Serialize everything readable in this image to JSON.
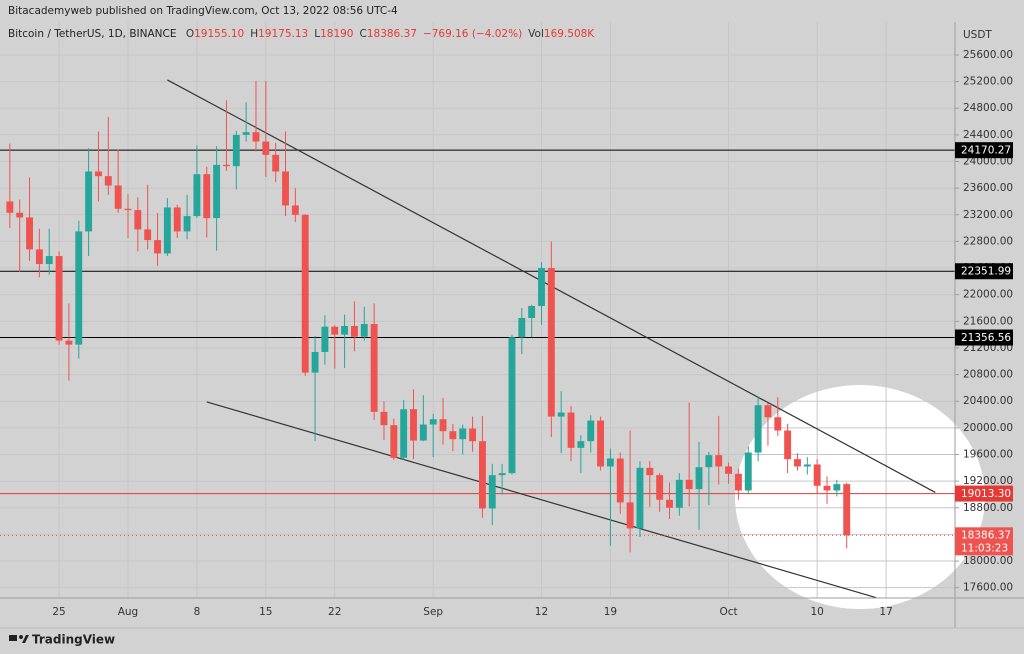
{
  "header": {
    "publisher": "Bitacademyweb published on TradingView.com, Oct 13, 2022 08:56 UTC-4",
    "footer": "TradingView"
  },
  "chart_data": {
    "type": "candlestick",
    "symbol": "Bitcoin / TetherUS, 1D, BINANCE",
    "legend_items": [
      {
        "key": "O",
        "value": "19155.10"
      },
      {
        "key": "H",
        "value": "19175.13"
      },
      {
        "key": "L",
        "value": "18190"
      },
      {
        "key": "C",
        "value": "18386.37"
      },
      {
        "key": "",
        "value": "−769.16 (−4.02%)"
      },
      {
        "key": "Vol",
        "value": "169.508K"
      }
    ],
    "y_axis_label": "USDT",
    "up_color": "#26a69a",
    "down_color": "#ef5350",
    "grid": true,
    "xlim": [
      "2022-07-19",
      "2022-10-24"
    ],
    "ylim": [
      17445,
      26095
    ],
    "yticks": [
      {
        "value": 17600,
        "label": "17600.00"
      },
      {
        "value": 18000,
        "label": "18000.00"
      },
      {
        "value": 18400,
        "label": "18400.00"
      },
      {
        "value": 18800,
        "label": "18800.00"
      },
      {
        "value": 19200,
        "label": "19200.00"
      },
      {
        "value": 19600,
        "label": "19600.00"
      },
      {
        "value": 20000,
        "label": "20000.00"
      },
      {
        "value": 20400,
        "label": "20400.00"
      },
      {
        "value": 20800,
        "label": "20800.00"
      },
      {
        "value": 21200,
        "label": "21200.00"
      },
      {
        "value": 21600,
        "label": "21600.00"
      },
      {
        "value": 22000,
        "label": "22000.00"
      },
      {
        "value": 22400,
        "label": "22400.00"
      },
      {
        "value": 22800,
        "label": "22800.00"
      },
      {
        "value": 23200,
        "label": "23200.00"
      },
      {
        "value": 23600,
        "label": "23600.00"
      },
      {
        "value": 24000,
        "label": "24000.00"
      },
      {
        "value": 24400,
        "label": "24400.00"
      },
      {
        "value": 24800,
        "label": "24800.00"
      },
      {
        "value": 25200,
        "label": "25200.00"
      },
      {
        "value": 25600,
        "label": "25600.00"
      }
    ],
    "xticks": [
      {
        "value": "2022-07-25",
        "label": "25"
      },
      {
        "value": "2022-08-01",
        "label": "Aug"
      },
      {
        "value": "2022-08-08",
        "label": "8"
      },
      {
        "value": "2022-08-15",
        "label": "15"
      },
      {
        "value": "2022-08-22",
        "label": "22"
      },
      {
        "value": "2022-09-01",
        "label": "Sep"
      },
      {
        "value": "2022-09-12",
        "label": "12"
      },
      {
        "value": "2022-09-19",
        "label": "19"
      },
      {
        "value": "2022-10-01",
        "label": "Oct"
      },
      {
        "value": "2022-10-10",
        "label": "10"
      },
      {
        "value": "2022-10-17",
        "label": "17"
      }
    ],
    "x": [
      "2022-07-20",
      "2022-07-21",
      "2022-07-22",
      "2022-07-23",
      "2022-07-24",
      "2022-07-25",
      "2022-07-26",
      "2022-07-27",
      "2022-07-28",
      "2022-07-29",
      "2022-07-30",
      "2022-07-31",
      "2022-08-01",
      "2022-08-02",
      "2022-08-03",
      "2022-08-04",
      "2022-08-05",
      "2022-08-06",
      "2022-08-07",
      "2022-08-08",
      "2022-08-09",
      "2022-08-10",
      "2022-08-11",
      "2022-08-12",
      "2022-08-13",
      "2022-08-14",
      "2022-08-15",
      "2022-08-16",
      "2022-08-17",
      "2022-08-18",
      "2022-08-19",
      "2022-08-20",
      "2022-08-21",
      "2022-08-22",
      "2022-08-23",
      "2022-08-24",
      "2022-08-25",
      "2022-08-26",
      "2022-08-27",
      "2022-08-28",
      "2022-08-29",
      "2022-08-30",
      "2022-08-31",
      "2022-09-01",
      "2022-09-02",
      "2022-09-03",
      "2022-09-04",
      "2022-09-05",
      "2022-09-06",
      "2022-09-07",
      "2022-09-08",
      "2022-09-09",
      "2022-09-10",
      "2022-09-11",
      "2022-09-12",
      "2022-09-13",
      "2022-09-14",
      "2022-09-15",
      "2022-09-16",
      "2022-09-17",
      "2022-09-18",
      "2022-09-19",
      "2022-09-20",
      "2022-09-21",
      "2022-09-22",
      "2022-09-23",
      "2022-09-24",
      "2022-09-25",
      "2022-09-26",
      "2022-09-27",
      "2022-09-28",
      "2022-09-29",
      "2022-09-30",
      "2022-10-01",
      "2022-10-02",
      "2022-10-03",
      "2022-10-04",
      "2022-10-05",
      "2022-10-06",
      "2022-10-07",
      "2022-10-08",
      "2022-10-09",
      "2022-10-10",
      "2022-10-11",
      "2022-10-12",
      "2022-10-13"
    ],
    "ohlc": [
      [
        23400,
        24270,
        23000,
        23230
      ],
      [
        23230,
        23430,
        22340,
        23160
      ],
      [
        23160,
        23760,
        22510,
        22680
      ],
      [
        22680,
        22990,
        22260,
        22460
      ],
      [
        22460,
        22990,
        22300,
        22580
      ],
      [
        22580,
        22650,
        21250,
        21310
      ],
      [
        21310,
        21870,
        20710,
        21250
      ],
      [
        21250,
        23110,
        21040,
        22950
      ],
      [
        22950,
        24200,
        22580,
        23850
      ],
      [
        23850,
        24450,
        23400,
        23780
      ],
      [
        23780,
        24670,
        23500,
        23640
      ],
      [
        23640,
        24180,
        23230,
        23290
      ],
      [
        23290,
        23510,
        22850,
        23270
      ],
      [
        23270,
        23460,
        22650,
        22980
      ],
      [
        22980,
        23650,
        22680,
        22820
      ],
      [
        22820,
        23230,
        22430,
        22620
      ],
      [
        22620,
        23450,
        22580,
        23310
      ],
      [
        23310,
        23350,
        22850,
        22950
      ],
      [
        22950,
        23500,
        22830,
        23180
      ],
      [
        23180,
        24240,
        23150,
        23810
      ],
      [
        23810,
        23920,
        22860,
        23150
      ],
      [
        23150,
        24230,
        22660,
        23950
      ],
      [
        23950,
        24920,
        23860,
        23930
      ],
      [
        23930,
        24460,
        23580,
        24400
      ],
      [
        24400,
        24890,
        24300,
        24440
      ],
      [
        24440,
        25210,
        24150,
        24300
      ],
      [
        24300,
        25210,
        23770,
        24100
      ],
      [
        24100,
        24280,
        23690,
        23850
      ],
      [
        23850,
        24450,
        23180,
        23340
      ],
      [
        23340,
        23600,
        23090,
        23200
      ],
      [
        23200,
        23210,
        20780,
        20830
      ],
      [
        20830,
        21380,
        19800,
        21140
      ],
      [
        21140,
        21690,
        20950,
        21520
      ],
      [
        21520,
        21540,
        20890,
        21400
      ],
      [
        21400,
        21700,
        20900,
        21530
      ],
      [
        21530,
        21900,
        21150,
        21370
      ],
      [
        21370,
        21820,
        21310,
        21560
      ],
      [
        21560,
        21870,
        20120,
        20240
      ],
      [
        20240,
        20400,
        19820,
        20040
      ],
      [
        20040,
        20140,
        19520,
        19550
      ],
      [
        19550,
        20420,
        19520,
        20280
      ],
      [
        20280,
        20580,
        19530,
        19810
      ],
      [
        19810,
        20490,
        19800,
        20050
      ],
      [
        20050,
        20210,
        19560,
        20130
      ],
      [
        20130,
        20450,
        19750,
        19950
      ],
      [
        19950,
        20060,
        19650,
        19830
      ],
      [
        19830,
        20050,
        19600,
        19990
      ],
      [
        19990,
        20170,
        19640,
        19800
      ],
      [
        19800,
        20180,
        18650,
        18790
      ],
      [
        18790,
        19460,
        18540,
        19290
      ],
      [
        19290,
        19460,
        19000,
        19320
      ],
      [
        19320,
        21400,
        19300,
        21360
      ],
      [
        21360,
        21800,
        21110,
        21650
      ],
      [
        21650,
        21850,
        21360,
        21830
      ],
      [
        21830,
        22490,
        21550,
        22400
      ],
      [
        22400,
        22800,
        19860,
        20170
      ],
      [
        20170,
        20550,
        19620,
        20230
      ],
      [
        20230,
        20330,
        19500,
        19700
      ],
      [
        19700,
        19890,
        19320,
        19800
      ],
      [
        19800,
        20190,
        19630,
        20110
      ],
      [
        20110,
        20170,
        19360,
        19420
      ],
      [
        19420,
        19690,
        18230,
        19540
      ],
      [
        19540,
        19630,
        18710,
        18880
      ],
      [
        18880,
        19960,
        18130,
        18490
      ],
      [
        18490,
        19500,
        18360,
        19400
      ],
      [
        19400,
        19500,
        18810,
        19290
      ],
      [
        19290,
        19320,
        18740,
        18920
      ],
      [
        18920,
        19180,
        18630,
        18800
      ],
      [
        18800,
        19320,
        18680,
        19220
      ],
      [
        19220,
        20380,
        18820,
        19080
      ],
      [
        19080,
        19790,
        18470,
        19410
      ],
      [
        19410,
        19640,
        18840,
        19590
      ],
      [
        19590,
        20180,
        19150,
        19420
      ],
      [
        19420,
        19480,
        19160,
        19310
      ],
      [
        19310,
        19390,
        18920,
        19060
      ],
      [
        19060,
        19720,
        19000,
        19630
      ],
      [
        19630,
        20480,
        19500,
        20340
      ],
      [
        20340,
        20370,
        19730,
        20160
      ],
      [
        20160,
        20460,
        19880,
        19960
      ],
      [
        19960,
        20060,
        19320,
        19530
      ],
      [
        19530,
        19620,
        19360,
        19420
      ],
      [
        19420,
        19560,
        19300,
        19450
      ],
      [
        19450,
        19530,
        19020,
        19130
      ],
      [
        19130,
        19270,
        18860,
        19060
      ],
      [
        19060,
        19220,
        18970,
        19155.1
      ],
      [
        19155.1,
        19175.13,
        18190,
        18386.37
      ]
    ],
    "levels": [
      {
        "price": 24170.27,
        "color": "#000000"
      },
      {
        "price": 22351.99,
        "color": "#000000"
      },
      {
        "price": 21356.56,
        "color": "#000000"
      },
      {
        "price": 19013.3,
        "label": "19013.30",
        "color": "#e53935"
      }
    ],
    "trendlines": [
      {
        "x": [
          "2022-08-05",
          "2022-10-22"
        ],
        "y": [
          25225,
          19030
        ],
        "color": "#333333"
      },
      {
        "x": [
          "2022-08-09",
          "2022-10-16"
        ],
        "y": [
          20390,
          17450
        ],
        "color": "#333333"
      }
    ],
    "countdown": "11:03:23"
  }
}
